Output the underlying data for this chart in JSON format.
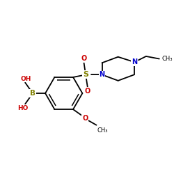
{
  "bg_color": "#ffffff",
  "bond_color": "#000000",
  "lw": 1.3,
  "S_color": "#808000",
  "N_color": "#0000cc",
  "O_color": "#cc0000",
  "B_color": "#808000",
  "figsize": [
    2.5,
    2.5
  ],
  "dpi": 100,
  "xlim": [
    -1.1,
    1.5
  ],
  "ylim": [
    -1.1,
    1.1
  ]
}
